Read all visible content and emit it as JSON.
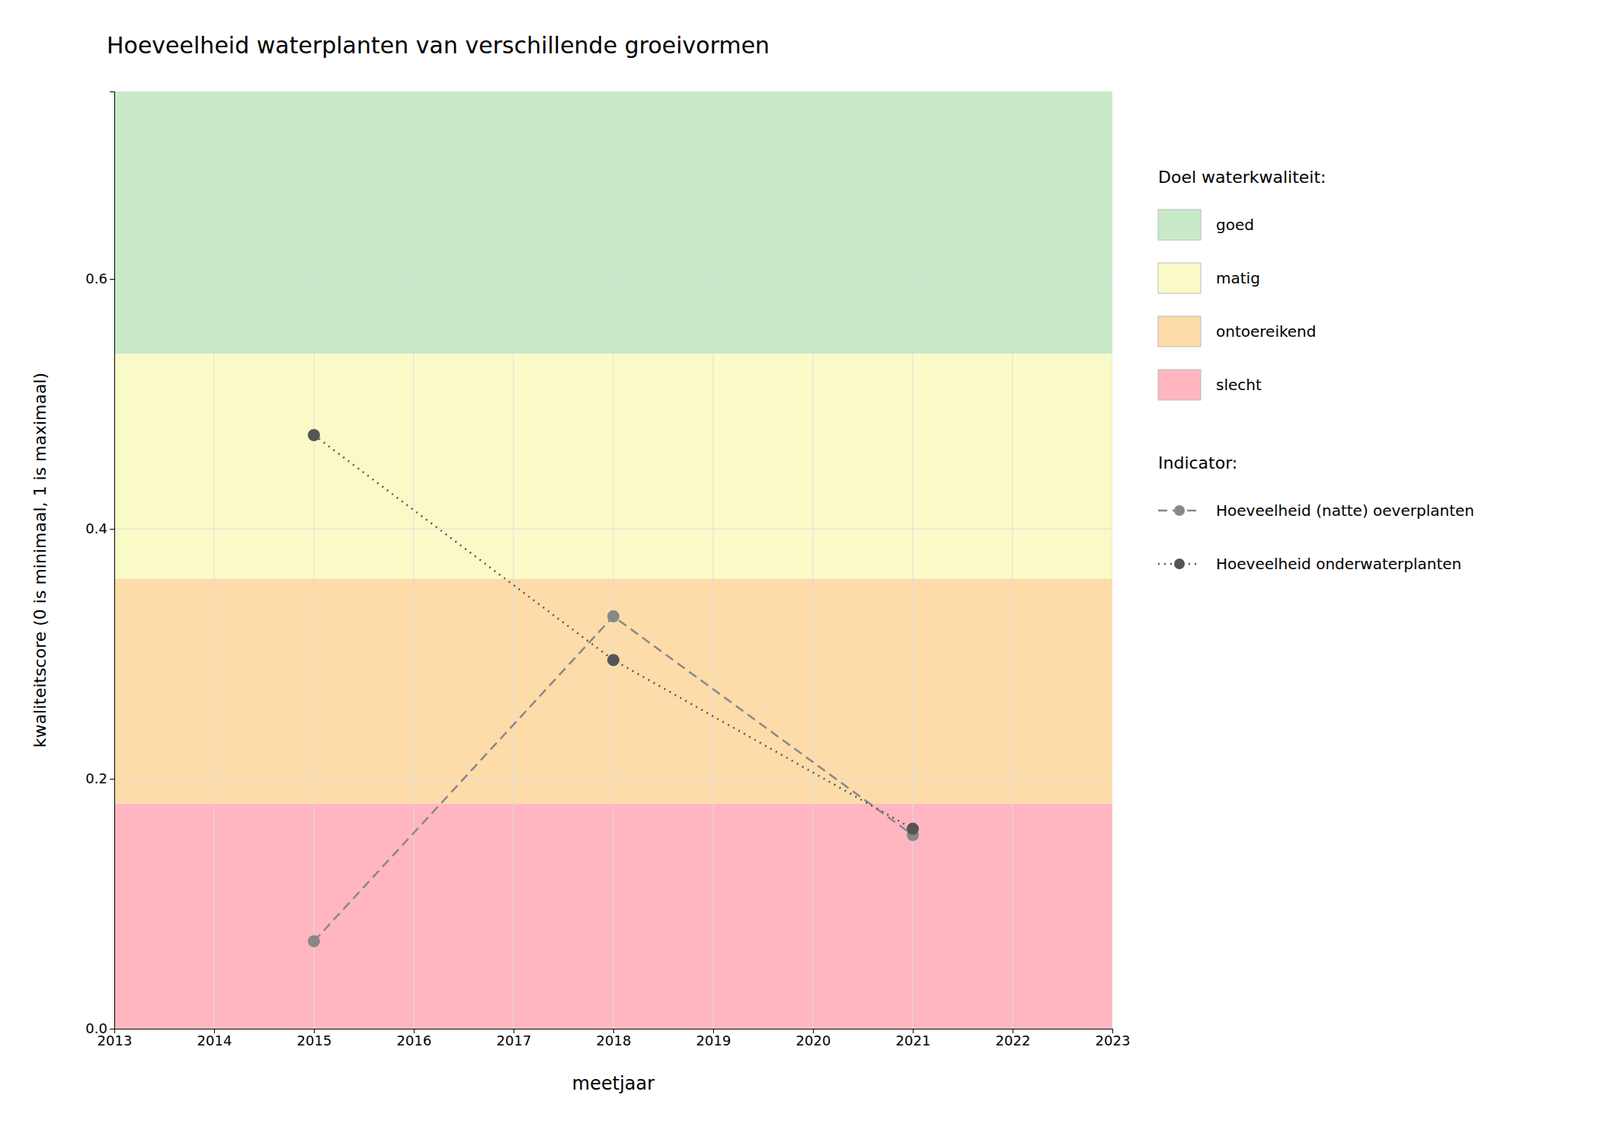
{
  "chart_data": {
    "type": "line",
    "title": "Hoeveelheid waterplanten van verschillende groeivormen",
    "xlabel": "meetjaar",
    "ylabel": "kwaliteitscore (0 is minimaal, 1 is maximaal)",
    "x": [
      2015,
      2018,
      2021
    ],
    "xlim": [
      2013,
      2023
    ],
    "ylim": [
      0.0,
      0.75
    ],
    "xticks": [
      2013,
      2014,
      2015,
      2016,
      2017,
      2018,
      2019,
      2020,
      2021,
      2022,
      2023
    ],
    "yticks": [
      {
        "value": 0.0,
        "label": "0.0"
      },
      0.2,
      0.4,
      0.6
    ],
    "grid": true,
    "zone_legend_title": "Doel waterkwaliteit:",
    "zones": [
      {
        "label": "goed",
        "from": 0.54,
        "to": 0.75,
        "color": "#C8EAC8"
      },
      {
        "label": "matig",
        "from": 0.36,
        "to": 0.54,
        "color": "#FAFAC8"
      },
      {
        "label": "ontoereikend",
        "from": 0.18,
        "to": 0.36,
        "color": "#FDDCAA"
      },
      {
        "label": "slecht",
        "from": 0.0,
        "to": 0.18,
        "color": "#FFB6C1"
      }
    ],
    "series_legend_title": "Indicator:",
    "series": [
      {
        "name": "Hoeveelheid (natte) oeverplanten",
        "values": [
          0.07,
          0.33,
          0.155
        ],
        "color": "#888888",
        "line_style": "dashed",
        "marker": "circle"
      },
      {
        "name": "Hoeveelheid onderwaterplanten",
        "values": [
          0.475,
          0.295,
          0.16
        ],
        "color": "#555555",
        "line_style": "dotted",
        "marker": "circle"
      }
    ]
  }
}
